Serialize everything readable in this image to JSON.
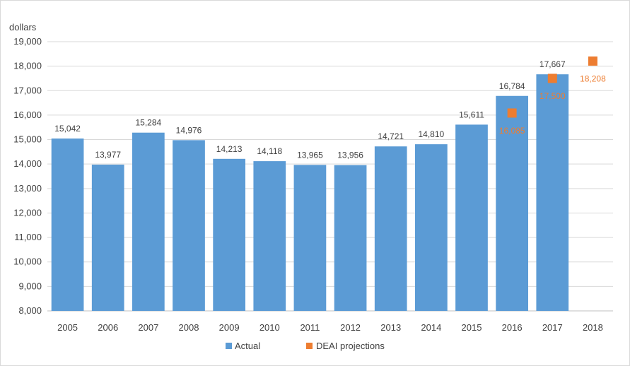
{
  "chart_data": {
    "type": "bar",
    "title": "",
    "ylabel": "dollars",
    "xlabel": "",
    "ylim": [
      8000,
      19000
    ],
    "ytick_step": 1000,
    "grid": true,
    "legend_position": "bottom",
    "categories": [
      "2005",
      "2006",
      "2007",
      "2008",
      "2009",
      "2010",
      "2011",
      "2012",
      "2013",
      "2014",
      "2015",
      "2016",
      "2017",
      "2018"
    ],
    "series": [
      {
        "name": "Actual",
        "kind": "bar",
        "color": "#5b9bd5",
        "values": [
          15042,
          13977,
          15284,
          14976,
          14213,
          14118,
          13965,
          13956,
          14721,
          14810,
          15611,
          16784,
          17667,
          null
        ],
        "labels": [
          "15,042",
          "13,977",
          "15,284",
          "14,976",
          "14,213",
          "14,118",
          "13,965",
          "13,956",
          "14,721",
          "14,810",
          "15,611",
          "16,784",
          "17,667",
          ""
        ]
      },
      {
        "name": "DEAI projections",
        "kind": "marker",
        "color": "#ed7d31",
        "values": [
          null,
          null,
          null,
          null,
          null,
          null,
          null,
          null,
          null,
          null,
          null,
          16085,
          17500,
          18208
        ],
        "labels": [
          "",
          "",
          "",
          "",
          "",
          "",
          "",
          "",
          "",
          "",
          "",
          "16,085",
          "17,500",
          "18,208"
        ]
      }
    ]
  }
}
